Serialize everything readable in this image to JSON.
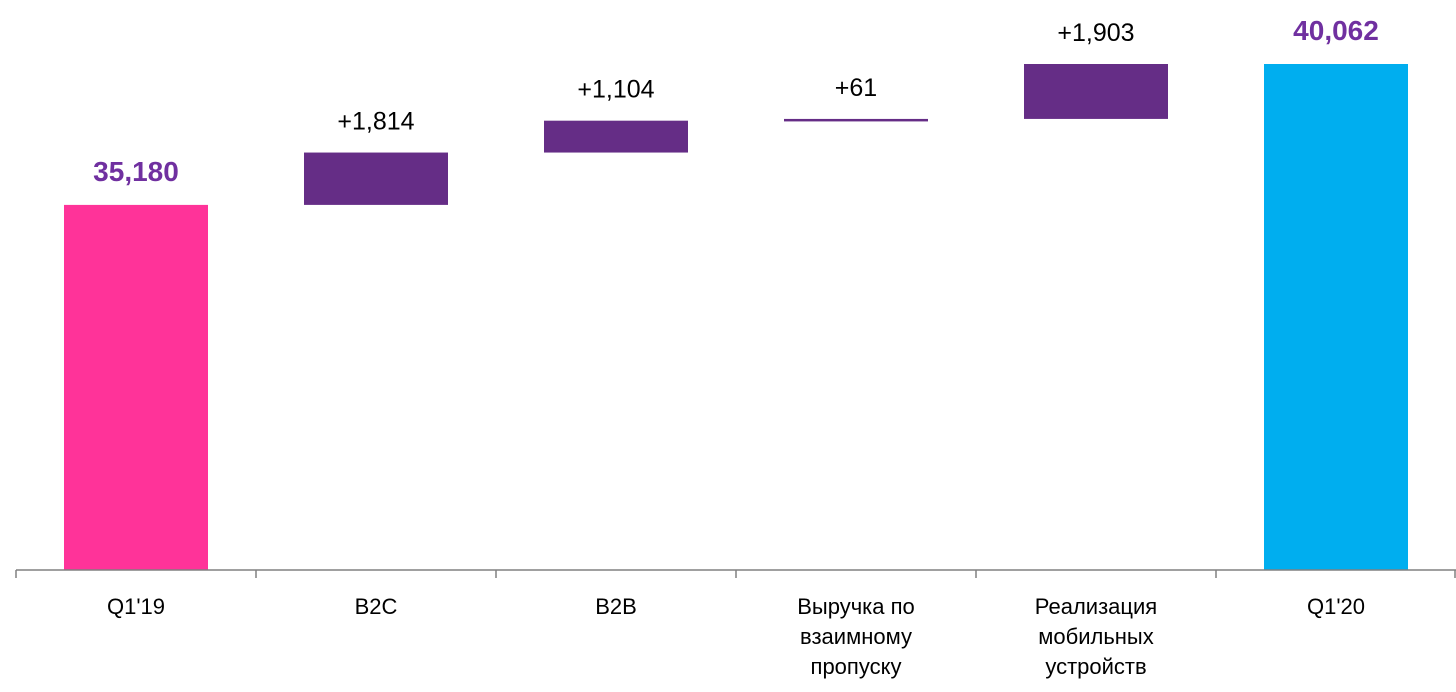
{
  "chart_data": {
    "type": "waterfall",
    "categories": [
      "Q1'19",
      "B2C",
      "B2B",
      "Выручка по взаимному пропуску",
      "Реализация мобильных устройств",
      "Q1'20"
    ],
    "category_lines": [
      [
        "Q1'19"
      ],
      [
        "B2C"
      ],
      [
        "B2B"
      ],
      [
        "Выручка по",
        "взаимному",
        "пропуску"
      ],
      [
        "Реализация",
        "мобильных",
        "устройств"
      ],
      [
        "Q1'20"
      ]
    ],
    "bars": [
      {
        "kind": "total",
        "value": 35180,
        "label": "35,180",
        "color": "#FF3399"
      },
      {
        "kind": "delta",
        "value": 1814,
        "label": "+1,814",
        "color": "#652D86"
      },
      {
        "kind": "delta",
        "value": 1104,
        "label": "+1,104",
        "color": "#652D86"
      },
      {
        "kind": "delta",
        "value": 61,
        "label": "+61",
        "color": "#652D86"
      },
      {
        "kind": "delta",
        "value": 1903,
        "label": "+1,903",
        "color": "#652D86"
      },
      {
        "kind": "total",
        "value": 40062,
        "label": "40,062",
        "color": "#00AEEF"
      }
    ],
    "total_label_color": "#7030A0",
    "delta_label_color": "#000000",
    "axis_color": "#808080",
    "ylim": [
      22530,
      40062
    ]
  }
}
